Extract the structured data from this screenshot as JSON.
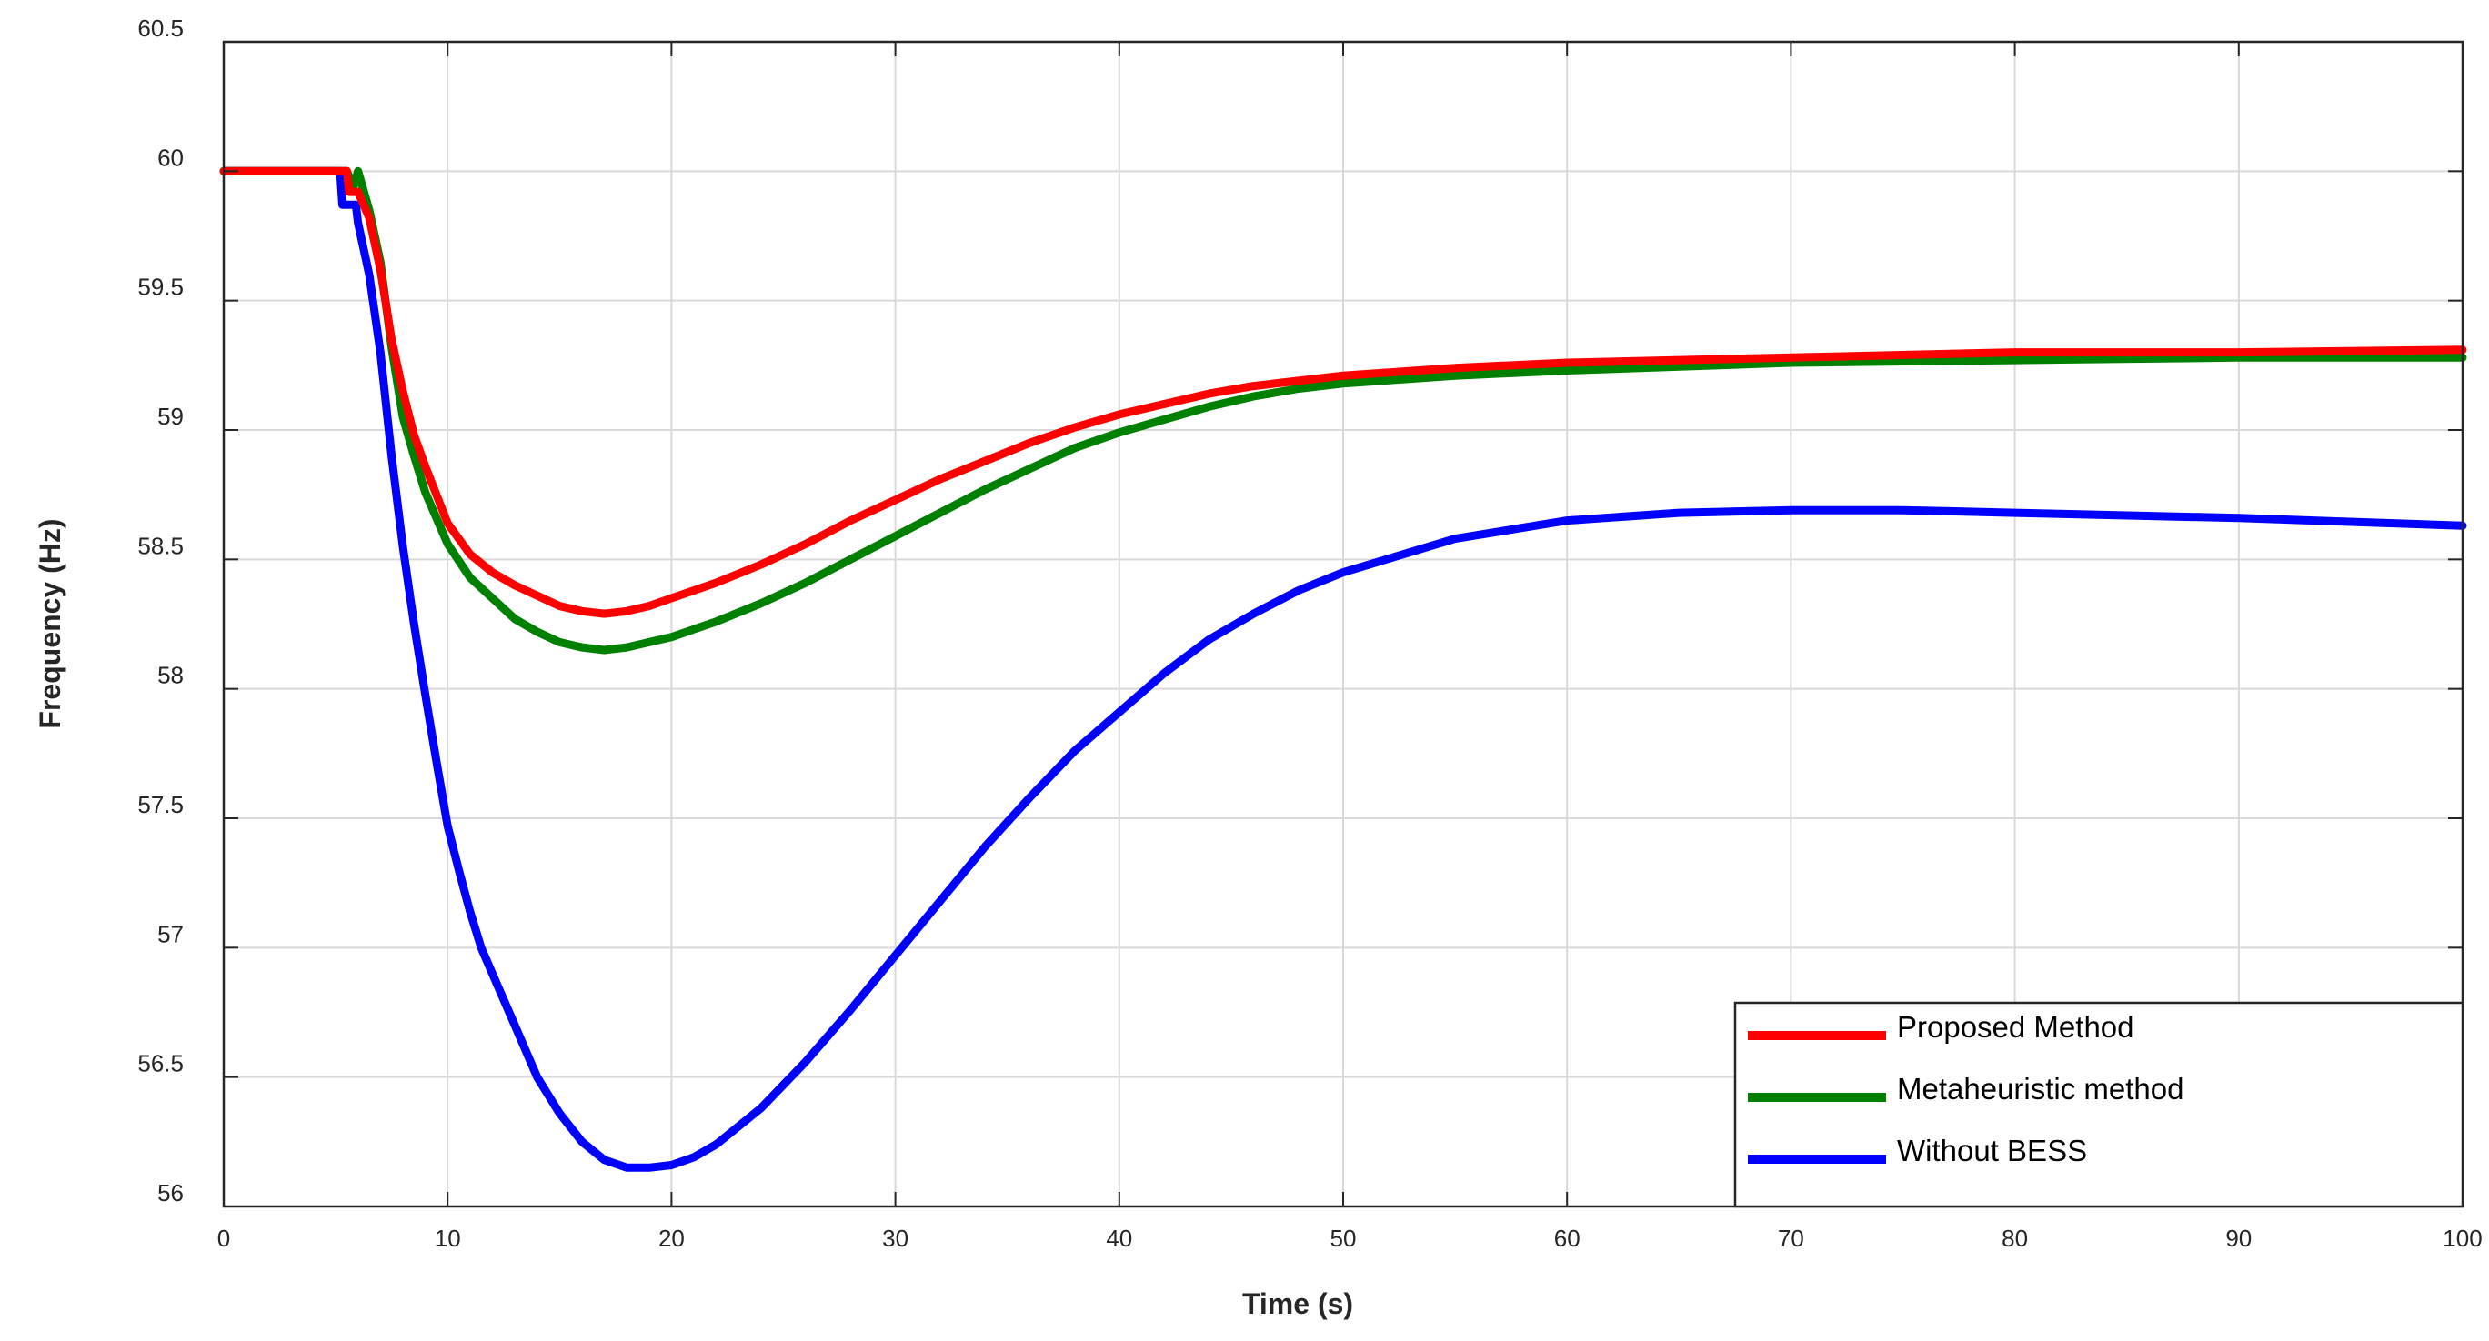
{
  "chart_data": {
    "type": "line",
    "xlabel": "Time (s)",
    "ylabel": "Frequency (Hz)",
    "xlim": [
      0,
      100
    ],
    "ylim": [
      56,
      60.5
    ],
    "x_ticks": [
      0,
      10,
      20,
      30,
      40,
      50,
      60,
      70,
      80,
      90,
      100
    ],
    "y_ticks": [
      56,
      56.5,
      57,
      57.5,
      58,
      58.5,
      59,
      59.5,
      60,
      60.5
    ],
    "y_tick_labels": [
      "56",
      "56.5",
      "57",
      "57.5",
      "58",
      "58.5",
      "59",
      "59.5",
      "60",
      "60.5"
    ],
    "grid": true,
    "legend_position": "bottom-right",
    "series": [
      {
        "name": "Proposed Method",
        "color": "#ff0000",
        "points": [
          [
            0,
            60
          ],
          [
            5.5,
            60
          ],
          [
            5.6,
            59.92
          ],
          [
            6.0,
            59.92
          ],
          [
            6.5,
            59.82
          ],
          [
            7,
            59.62
          ],
          [
            7.5,
            59.35
          ],
          [
            8,
            59.15
          ],
          [
            8.5,
            58.98
          ],
          [
            9,
            58.86
          ],
          [
            10,
            58.64
          ],
          [
            11,
            58.52
          ],
          [
            12,
            58.45
          ],
          [
            13,
            58.4
          ],
          [
            14,
            58.36
          ],
          [
            15,
            58.32
          ],
          [
            16,
            58.3
          ],
          [
            17,
            58.29
          ],
          [
            18,
            58.3
          ],
          [
            19,
            58.32
          ],
          [
            20,
            58.35
          ],
          [
            22,
            58.41
          ],
          [
            24,
            58.48
          ],
          [
            26,
            58.56
          ],
          [
            28,
            58.65
          ],
          [
            30,
            58.73
          ],
          [
            32,
            58.81
          ],
          [
            34,
            58.88
          ],
          [
            36,
            58.95
          ],
          [
            38,
            59.01
          ],
          [
            40,
            59.06
          ],
          [
            42,
            59.1
          ],
          [
            44,
            59.14
          ],
          [
            46,
            59.17
          ],
          [
            48,
            59.19
          ],
          [
            50,
            59.21
          ],
          [
            55,
            59.24
          ],
          [
            60,
            59.26
          ],
          [
            70,
            59.28
          ],
          [
            80,
            59.3
          ],
          [
            90,
            59.3
          ],
          [
            100,
            59.31
          ]
        ]
      },
      {
        "name": "Metaheuristic method",
        "color": "#008000",
        "points": [
          [
            0,
            60
          ],
          [
            5.5,
            60
          ],
          [
            5.8,
            59.94
          ],
          [
            6.0,
            60
          ],
          [
            6.5,
            59.85
          ],
          [
            7,
            59.65
          ],
          [
            7.5,
            59.32
          ],
          [
            8,
            59.05
          ],
          [
            8.5,
            58.9
          ],
          [
            9,
            58.76
          ],
          [
            10,
            58.56
          ],
          [
            11,
            58.43
          ],
          [
            12,
            58.35
          ],
          [
            13,
            58.27
          ],
          [
            14,
            58.22
          ],
          [
            15,
            58.18
          ],
          [
            16,
            58.16
          ],
          [
            17,
            58.15
          ],
          [
            18,
            58.16
          ],
          [
            19,
            58.18
          ],
          [
            20,
            58.2
          ],
          [
            22,
            58.26
          ],
          [
            24,
            58.33
          ],
          [
            26,
            58.41
          ],
          [
            28,
            58.5
          ],
          [
            30,
            58.59
          ],
          [
            32,
            58.68
          ],
          [
            34,
            58.77
          ],
          [
            36,
            58.85
          ],
          [
            38,
            58.93
          ],
          [
            40,
            58.99
          ],
          [
            42,
            59.04
          ],
          [
            44,
            59.09
          ],
          [
            46,
            59.13
          ],
          [
            48,
            59.16
          ],
          [
            50,
            59.18
          ],
          [
            55,
            59.21
          ],
          [
            60,
            59.23
          ],
          [
            70,
            59.26
          ],
          [
            80,
            59.27
          ],
          [
            90,
            59.28
          ],
          [
            100,
            59.28
          ]
        ]
      },
      {
        "name": "Without BESS",
        "color": "#0000ff",
        "points": [
          [
            0,
            60
          ],
          [
            5.2,
            60
          ],
          [
            5.3,
            59.87
          ],
          [
            5.9,
            59.87
          ],
          [
            6,
            59.8
          ],
          [
            6.5,
            59.6
          ],
          [
            7,
            59.3
          ],
          [
            7.5,
            58.9
          ],
          [
            8,
            58.55
          ],
          [
            8.5,
            58.25
          ],
          [
            9,
            57.98
          ],
          [
            9.5,
            57.72
          ],
          [
            10,
            57.47
          ],
          [
            10.5,
            57.3
          ],
          [
            11,
            57.14
          ],
          [
            11.5,
            57.0
          ],
          [
            12,
            56.9
          ],
          [
            13,
            56.7
          ],
          [
            14,
            56.5
          ],
          [
            15,
            56.36
          ],
          [
            16,
            56.25
          ],
          [
            17,
            56.18
          ],
          [
            18,
            56.15
          ],
          [
            19,
            56.15
          ],
          [
            20,
            56.16
          ],
          [
            21,
            56.19
          ],
          [
            22,
            56.24
          ],
          [
            24,
            56.38
          ],
          [
            26,
            56.56
          ],
          [
            28,
            56.76
          ],
          [
            30,
            56.97
          ],
          [
            32,
            57.18
          ],
          [
            34,
            57.39
          ],
          [
            36,
            57.58
          ],
          [
            38,
            57.76
          ],
          [
            40,
            57.91
          ],
          [
            42,
            58.06
          ],
          [
            44,
            58.19
          ],
          [
            46,
            58.29
          ],
          [
            48,
            58.38
          ],
          [
            50,
            58.45
          ],
          [
            55,
            58.58
          ],
          [
            60,
            58.65
          ],
          [
            65,
            58.68
          ],
          [
            70,
            58.69
          ],
          [
            75,
            58.69
          ],
          [
            80,
            58.68
          ],
          [
            90,
            58.66
          ],
          [
            100,
            58.63
          ]
        ]
      }
    ]
  }
}
